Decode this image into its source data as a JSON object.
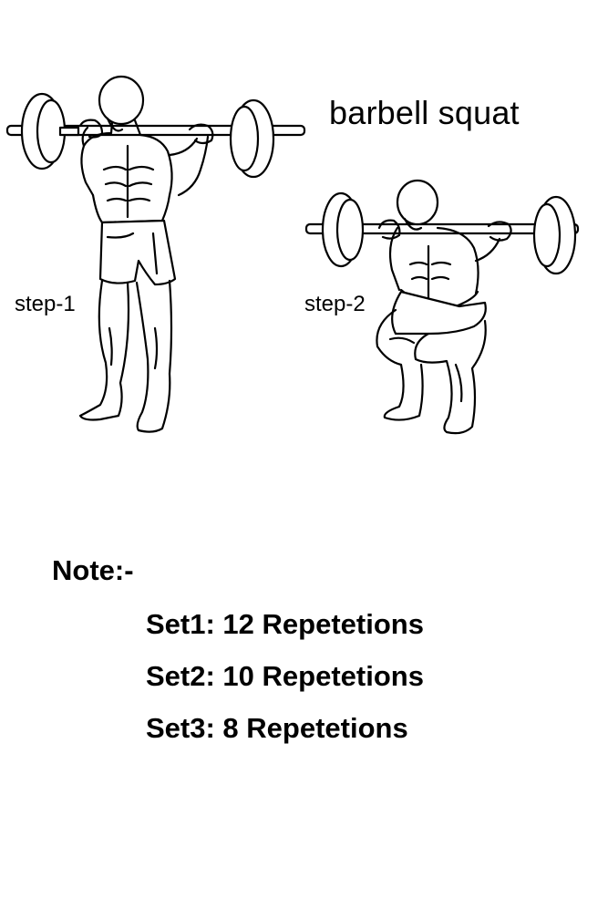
{
  "title": "barbell squat",
  "steps": [
    {
      "label": "step-1"
    },
    {
      "label": "step-2"
    }
  ],
  "note": {
    "heading": "Note:-",
    "sets": [
      {
        "text": "Set1: 12 Repetetions"
      },
      {
        "text": "Set2: 10 Repetetions"
      },
      {
        "text": "Set3: 8 Repetetions"
      }
    ]
  },
  "colors": {
    "background": "#ffffff",
    "ink": "#000000"
  }
}
